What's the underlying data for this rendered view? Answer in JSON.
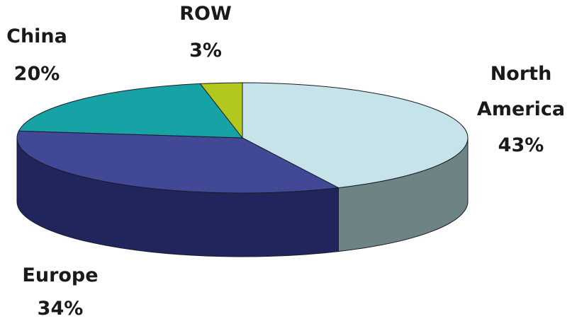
{
  "chart_data": {
    "type": "pie",
    "title": "",
    "style": "3d-exploded-none",
    "slices": [
      {
        "label": "North",
        "label_line2": "America",
        "value_label": "43%",
        "value": 43,
        "color": "#c5e3e8",
        "side_color": "#6e8484"
      },
      {
        "label": "Europe",
        "label_line2": "",
        "value_label": "34%",
        "value": 34,
        "color": "#414996",
        "side_color": "#20265c"
      },
      {
        "label": "China",
        "label_line2": "",
        "value_label": "20%",
        "value": 20,
        "color": "#17a3a5",
        "side_color": "#0f6e70"
      },
      {
        "label": "ROW",
        "label_line2": "",
        "value_label": "3%",
        "value": 3,
        "color": "#b3c81e",
        "side_color": "#7a8a14"
      }
    ]
  }
}
